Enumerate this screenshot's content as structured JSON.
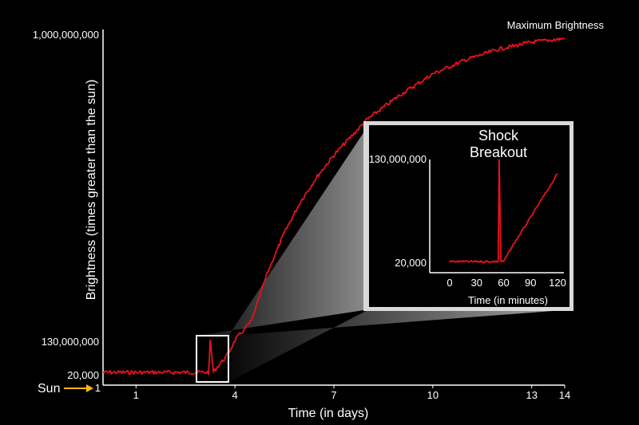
{
  "chart_data": [
    {
      "type": "line",
      "xlabel": "Time (in days)",
      "ylabel": "Brightness  (times greater than the sun)",
      "x_ticks": [
        "1",
        "4",
        "7",
        "10",
        "13",
        "14"
      ],
      "y_ticks": [
        "1,000,000,000",
        "130,000,000",
        "20,000",
        "1"
      ],
      "annotations": {
        "peak": "Maximum Brightness",
        "sun": "Sun"
      },
      "xlim": [
        0,
        14
      ],
      "series": [
        {
          "color": "#e8121b",
          "x": [
            0,
            1,
            2,
            2.9,
            3.05,
            3.2,
            3.25,
            3.35,
            3.5,
            3.75,
            4.0,
            4.5,
            5.0,
            5.5,
            6.0,
            6.5,
            7.0,
            8.0,
            9.0,
            10.0,
            11.0,
            12.0,
            13.0,
            14.0
          ],
          "y": [
            20000,
            20000,
            20000,
            20000,
            20000,
            25000,
            130000000,
            25000,
            30000000,
            70000000,
            135000000,
            190000000,
            330000000,
            440000000,
            530000000,
            600000000,
            660000000,
            760000000,
            830000000,
            890000000,
            930000000,
            960000000,
            980000000,
            990000000
          ]
        }
      ]
    },
    {
      "type": "line",
      "title": "Shock Breakout",
      "xlabel": "Time (in minutes)",
      "x_ticks": [
        "0",
        "30",
        "60",
        "90",
        "120"
      ],
      "y_ticks": [
        "130,000,000",
        "20,000"
      ],
      "xlim": [
        -10,
        130
      ],
      "series": [
        {
          "color": "#e8121b",
          "x": [
            0,
            10,
            20,
            30,
            40,
            45,
            50,
            54,
            55,
            57,
            60,
            70,
            80,
            90,
            100,
            110,
            120
          ],
          "y": [
            20000,
            20000,
            20000,
            20000,
            21000,
            24000,
            30000,
            60000,
            130000000,
            35000,
            25000,
            20000000,
            38000000,
            56000000,
            75000000,
            93000000,
            112000000
          ]
        }
      ]
    }
  ]
}
